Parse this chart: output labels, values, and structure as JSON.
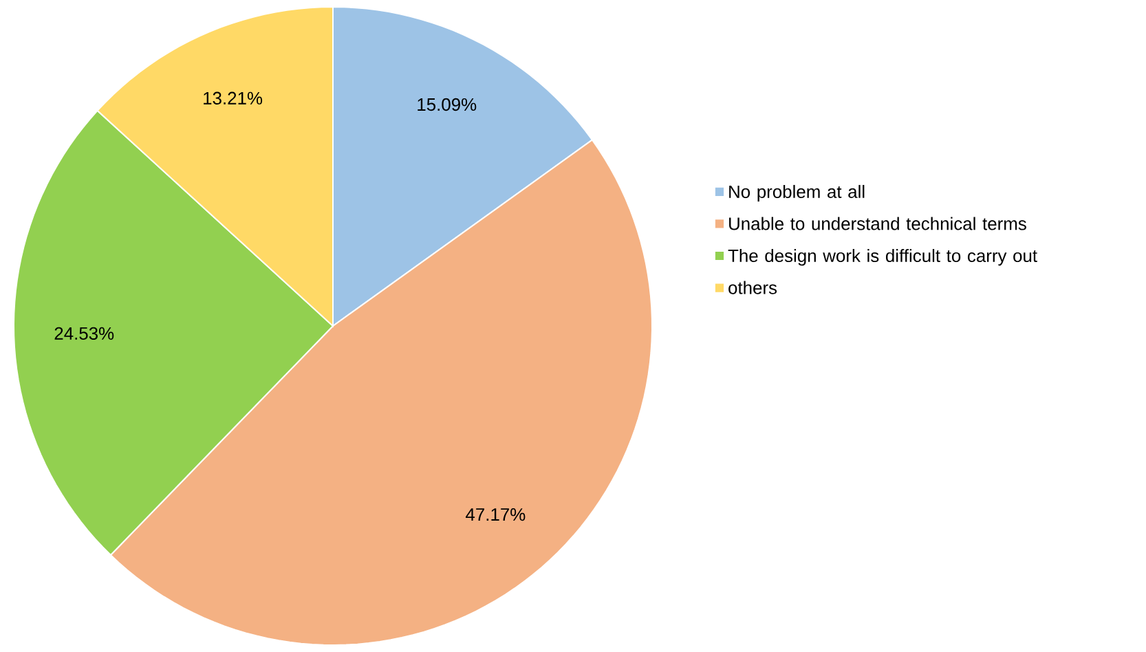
{
  "chart_data": {
    "type": "pie",
    "categories": [
      "No problem at all",
      "Unable to understand technical terms",
      "The design work is difficult to carry out",
      "others"
    ],
    "values": [
      15.09,
      47.17,
      24.53,
      13.21
    ],
    "value_labels": [
      "15.09%",
      "47.17%",
      "24.53%",
      "13.21%"
    ],
    "colors": [
      "#9dc3e6",
      "#f4b183",
      "#92d050",
      "#ffd966"
    ],
    "legend": "right"
  }
}
